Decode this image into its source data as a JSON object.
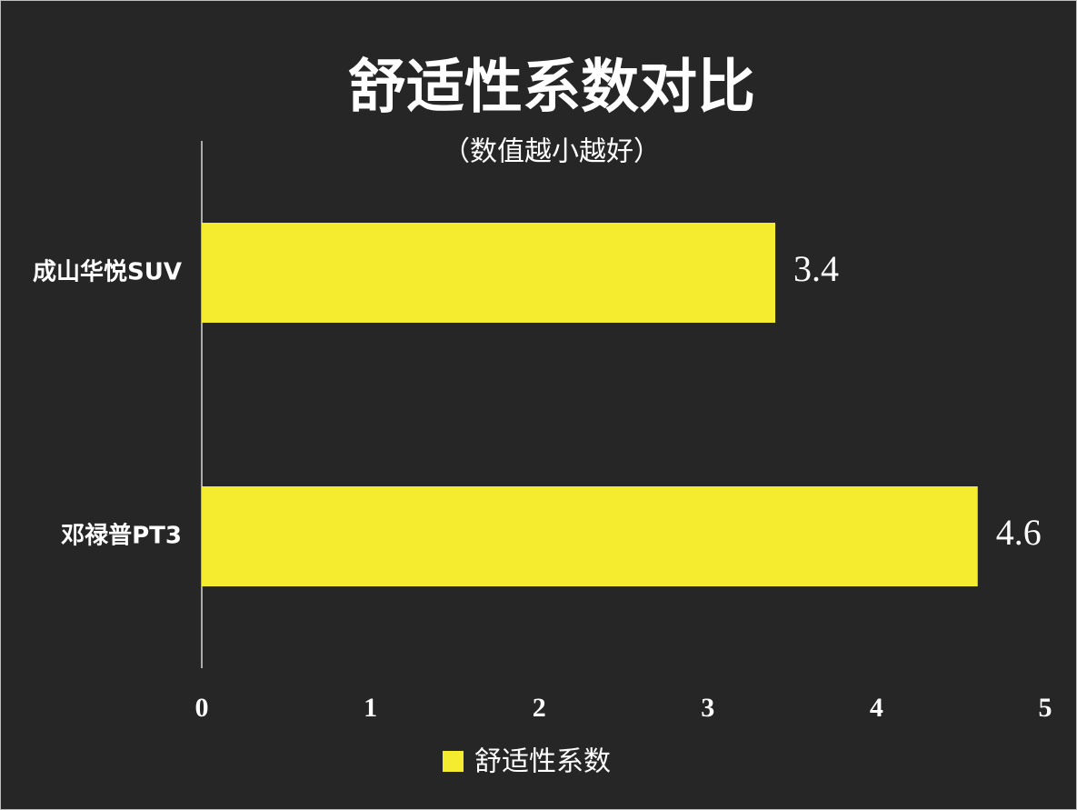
{
  "chart_data": {
    "type": "bar",
    "orientation": "horizontal",
    "title": "舒适性系数对比",
    "subtitle": "（数值越小越好）",
    "categories": [
      "成山华悦SUV",
      "邓禄普PT3"
    ],
    "series": [
      {
        "name": "舒适性系数",
        "color": "#f5ec2f",
        "values": [
          3.4,
          4.6
        ]
      }
    ],
    "xlim": [
      0,
      5
    ],
    "xticks": [
      0,
      1,
      2,
      3,
      4,
      5
    ],
    "grid": false,
    "legend": "bottom"
  }
}
